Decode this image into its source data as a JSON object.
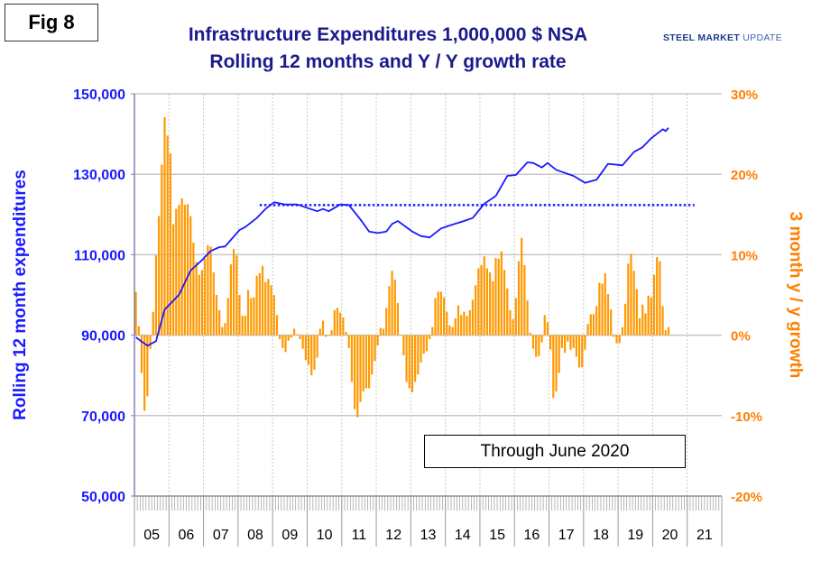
{
  "figure_label": "Fig 8",
  "logo": {
    "bold": "STEEL MARKET",
    "light": "UPDATE"
  },
  "colors": {
    "line": "#1a1aff",
    "bars": "#ff9900",
    "left_axis": "#1a1aff",
    "right_axis": "#ff8000",
    "title": "#1a1a8c"
  },
  "chart_data": {
    "type": "bar+line",
    "title": "Infrastructure Expenditures 1,000,000 $ NSA",
    "subtitle": "Rolling 12 months and Y / Y growth rate",
    "annotation": "Through June 2020",
    "ylabel_left": "Rolling 12 month expenditures",
    "ylabel_right": "3 month y / y growth",
    "ylim_left": [
      50000,
      150000
    ],
    "ylim_right": [
      -20,
      30
    ],
    "yticks_left": [
      "50,000",
      "70,000",
      "90,000",
      "110,000",
      "130,000",
      "150,000"
    ],
    "yticks_right": [
      "-20%",
      "-10%",
      "0%",
      "10%",
      "20%",
      "30%"
    ],
    "xticks": [
      "05",
      "06",
      "07",
      "08",
      "09",
      "10",
      "11",
      "12",
      "13",
      "14",
      "15",
      "16",
      "17",
      "18",
      "19",
      "20",
      "21"
    ],
    "xlim": [
      "2005-01",
      "2021-12"
    ],
    "grid": true,
    "bars": {
      "start": "2005-01",
      "frequency": "monthly",
      "unit": "%",
      "values": [
        5.4,
        1.1,
        -4.7,
        -9.4,
        -7.6,
        -1.7,
        2.9,
        9.9,
        14.8,
        21.2,
        27.1,
        24.8,
        22.6,
        13.8,
        15.7,
        16.2,
        17.0,
        16.2,
        16.3,
        14.8,
        11.5,
        9.1,
        7.5,
        8.1,
        9.5,
        11.2,
        11.0,
        7.8,
        5.0,
        3.1,
        1.0,
        1.5,
        4.6,
        8.8,
        10.7,
        9.9,
        5.0,
        2.4,
        2.4,
        5.6,
        4.6,
        4.7,
        7.4,
        7.7,
        8.6,
        6.6,
        7.0,
        6.2,
        5.0,
        2.5,
        -0.5,
        -1.6,
        -2.1,
        -0.7,
        -0.3,
        0.8,
        0.1,
        -0.5,
        -1.7,
        -3.1,
        -3.7,
        -5.0,
        -4.3,
        -2.8,
        0.8,
        1.8,
        -0.2,
        -0.1,
        0.6,
        3.1,
        3.4,
        2.8,
        2.2,
        0.4,
        -1.6,
        -5.8,
        -9.2,
        -10.2,
        -8.3,
        -7.0,
        -6.6,
        -6.6,
        -4.9,
        -3.2,
        -1.3,
        0.9,
        0.8,
        3.4,
        6.1,
        8.0,
        6.9,
        4.0,
        0,
        -2.5,
        -5.8,
        -6.6,
        -7.1,
        -5.8,
        -4.9,
        -3.4,
        -2.3,
        -2.0,
        -0.5,
        1.0,
        4.6,
        5.4,
        5.4,
        4.7,
        2.9,
        1.2,
        1.0,
        2.1,
        3.7,
        2.5,
        2.9,
        2.4,
        3.1,
        4.4,
        6.2,
        8.3,
        8.7,
        9.8,
        8.3,
        7.8,
        6.7,
        9.6,
        9.5,
        10.4,
        8.1,
        5.8,
        3.1,
        2.0,
        4.6,
        9.2,
        12.1,
        8.7,
        4.3,
        0.3,
        -1.7,
        -2.7,
        -2.6,
        -0.9,
        2.5,
        1.6,
        -1.8,
        -7.8,
        -7.0,
        -4.7,
        -1.6,
        -2.2,
        -0.8,
        -1.8,
        -1.6,
        -2.7,
        -4.0,
        -4.0,
        -1.8,
        1.4,
        2.6,
        2.6,
        3.6,
        6.5,
        6.4,
        7.7,
        5.1,
        3.2,
        -0.2,
        -1.0,
        -1.0,
        1.0,
        3.9,
        8.9,
        10.1,
        8.0,
        5.7,
        2.1,
        3.8,
        2.7,
        4.9,
        4.7,
        7.5,
        9.7,
        9.2,
        3.6,
        0.6,
        1.0
      ]
    },
    "line": {
      "unit": "$M",
      "points": [
        [
          "2005-01",
          89460
        ],
        [
          "2005-05",
          87380
        ],
        [
          "2005-08",
          88500
        ],
        [
          "2005-11",
          96350
        ],
        [
          "2006-04",
          100070
        ],
        [
          "2006-08",
          106050
        ],
        [
          "2006-12",
          108680
        ],
        [
          "2007-03",
          110920
        ],
        [
          "2007-06",
          111880
        ],
        [
          "2007-08",
          112030
        ],
        [
          "2008-01",
          116140
        ],
        [
          "2008-03",
          116880
        ],
        [
          "2008-07",
          119130
        ],
        [
          "2008-10",
          121370
        ],
        [
          "2009-01",
          123020
        ],
        [
          "2009-05",
          122500
        ],
        [
          "2009-09",
          122500
        ],
        [
          "2010-04",
          120800
        ],
        [
          "2010-06",
          121370
        ],
        [
          "2010-08",
          120800
        ],
        [
          "2010-12",
          122500
        ],
        [
          "2011-03",
          122350
        ],
        [
          "2011-07",
          118760
        ],
        [
          "2011-10",
          115770
        ],
        [
          "2012-01",
          115390
        ],
        [
          "2012-04",
          115770
        ],
        [
          "2012-06",
          117640
        ],
        [
          "2012-08",
          118390
        ],
        [
          "2013-01",
          115770
        ],
        [
          "2013-04",
          114650
        ],
        [
          "2013-07",
          114280
        ],
        [
          "2013-11",
          116520
        ],
        [
          "2014-02",
          117260
        ],
        [
          "2014-07",
          118390
        ],
        [
          "2014-10",
          119130
        ],
        [
          "2015-02",
          122650
        ],
        [
          "2015-06",
          124590
        ],
        [
          "2015-10",
          129600
        ],
        [
          "2016-01",
          129820
        ],
        [
          "2016-05",
          132960
        ],
        [
          "2016-07",
          132810
        ],
        [
          "2016-10",
          131690
        ],
        [
          "2016-12",
          132810
        ],
        [
          "2017-03",
          131090
        ],
        [
          "2017-06",
          130340
        ],
        [
          "2017-09",
          129600
        ],
        [
          "2018-01",
          127880
        ],
        [
          "2018-05",
          128630
        ],
        [
          "2018-09",
          132590
        ],
        [
          "2019-02",
          132210
        ],
        [
          "2019-06",
          135570
        ],
        [
          "2019-09",
          136700
        ],
        [
          "2019-12",
          138940
        ],
        [
          "2020-04",
          141180
        ],
        [
          "2020-05",
          140740
        ],
        [
          "2020-06",
          141550
        ]
      ]
    },
    "reference_line": {
      "value": 122350,
      "from": "2008-08",
      "to": "2021-03",
      "style": "dotted"
    }
  }
}
